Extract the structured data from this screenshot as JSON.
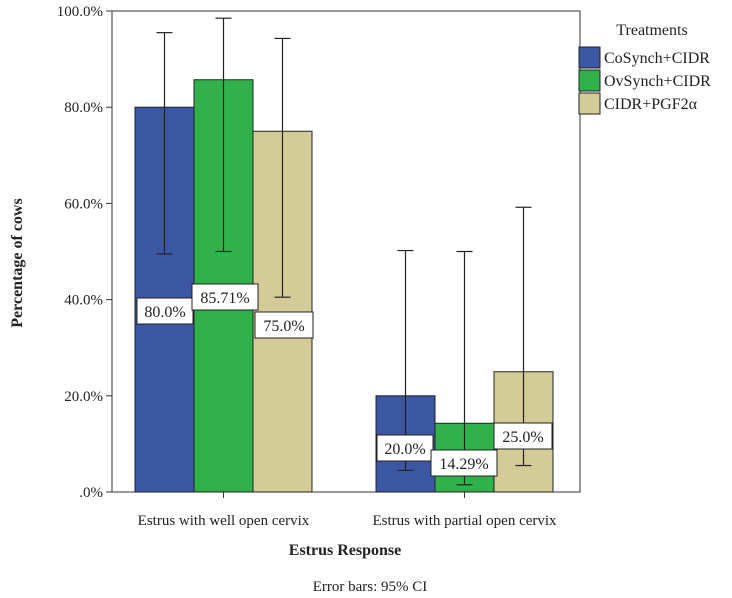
{
  "chart_data": {
    "type": "bar",
    "xlabel": "Estrus Response",
    "ylabel": "Percentage of cows",
    "ylim": [
      0,
      100
    ],
    "y_ticks": [
      ".0%",
      "20.0%",
      "40.0%",
      "60.0%",
      "80.0%",
      "100.0%"
    ],
    "y_tick_values": [
      0,
      20,
      40,
      60,
      80,
      100
    ],
    "categories": [
      "Estrus with well open cervix",
      "Estrus with partial open cervix"
    ],
    "legend_title": "Treatments",
    "legend_position": "right",
    "footnote": "Error bars: 95% CI",
    "series": [
      {
        "name": "CoSynch+CIDR",
        "color": "#3a56a5",
        "values": [
          80.0,
          20.0
        ],
        "labels": [
          "80.0%",
          "20.0%"
        ],
        "ci_low": [
          49.5,
          4.5
        ],
        "ci_high": [
          95.5,
          50.2
        ]
      },
      {
        "name": "OvSynch+CIDR",
        "color": "#2fb24a",
        "values": [
          85.71,
          14.29
        ],
        "labels": [
          "85.71%",
          "14.29%"
        ],
        "ci_low": [
          50.0,
          1.5
        ],
        "ci_high": [
          98.5,
          50.0
        ]
      },
      {
        "name": "CIDR+PGF2α",
        "color": "#d4cc96",
        "values": [
          75.0,
          25.0
        ],
        "labels": [
          "75.0%",
          "25.0%"
        ],
        "ci_low": [
          40.5,
          5.5
        ],
        "ci_high": [
          94.3,
          59.2
        ]
      }
    ]
  }
}
